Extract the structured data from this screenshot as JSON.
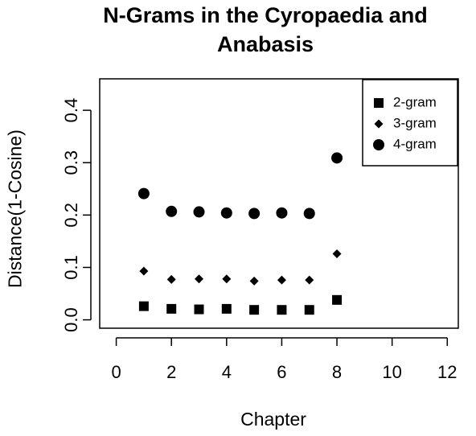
{
  "chart_data": {
    "type": "scatter",
    "title_lines": [
      "N-Grams in the Cyropaedia and",
      "Anabasis"
    ],
    "xlabel": "Chapter",
    "ylabel": "Distance(1-Cosine)",
    "xlim": [
      -0.6,
      12.4
    ],
    "ylim": [
      -0.016,
      0.46
    ],
    "xticks": [
      0,
      2,
      4,
      6,
      8,
      10,
      12
    ],
    "yticks": [
      0.0,
      0.1,
      0.2,
      0.3,
      0.4
    ],
    "xtick_labels": [
      "0",
      "2",
      "4",
      "6",
      "8",
      "10",
      "12"
    ],
    "ytick_labels": [
      "0.0",
      "0.1",
      "0.2",
      "0.3",
      "0.4"
    ],
    "grid": false,
    "legend_position": "top-right",
    "x": [
      1,
      2,
      3,
      4,
      5,
      6,
      7,
      8
    ],
    "series": [
      {
        "name": "2-gram",
        "marker": "square",
        "values": [
          0.026,
          0.021,
          0.02,
          0.021,
          0.019,
          0.019,
          0.019,
          0.038
        ]
      },
      {
        "name": "3-gram",
        "marker": "diamond",
        "values": [
          0.093,
          0.077,
          0.078,
          0.078,
          0.074,
          0.076,
          0.076,
          0.126
        ]
      },
      {
        "name": "4-gram",
        "marker": "circle",
        "values": [
          0.241,
          0.207,
          0.206,
          0.204,
          0.203,
          0.204,
          0.203,
          0.309
        ]
      }
    ]
  }
}
